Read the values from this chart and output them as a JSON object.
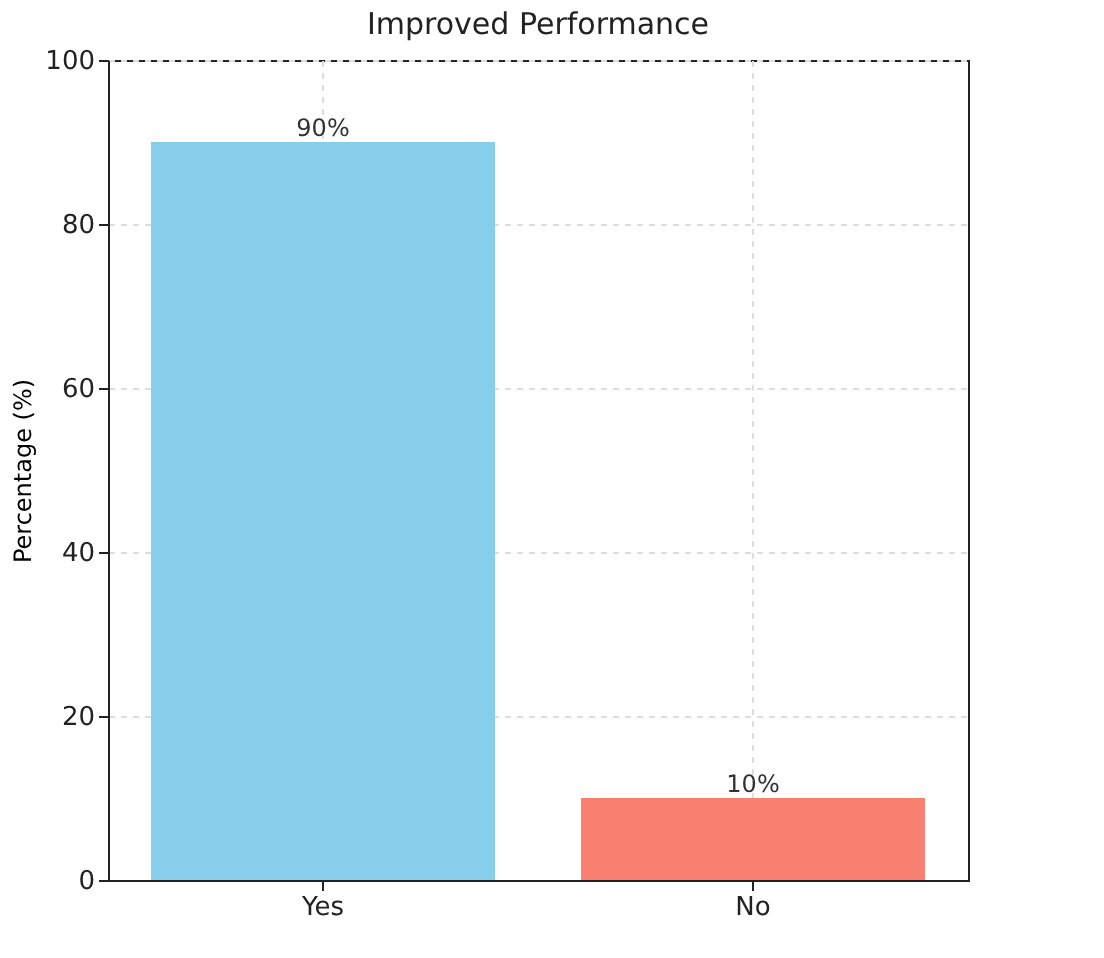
{
  "chart_data": {
    "type": "bar",
    "title": "Improved Performance",
    "ylabel": "Percentage (%)",
    "categories": [
      "Yes",
      "No"
    ],
    "values": [
      90,
      10
    ],
    "colors": [
      "#87ceeb",
      "#fa8072"
    ],
    "value_labels": [
      "90%",
      "10%"
    ],
    "ylim": [
      0,
      100
    ],
    "yticks": [
      0,
      20,
      40,
      60,
      80,
      100
    ],
    "grid": true
  }
}
